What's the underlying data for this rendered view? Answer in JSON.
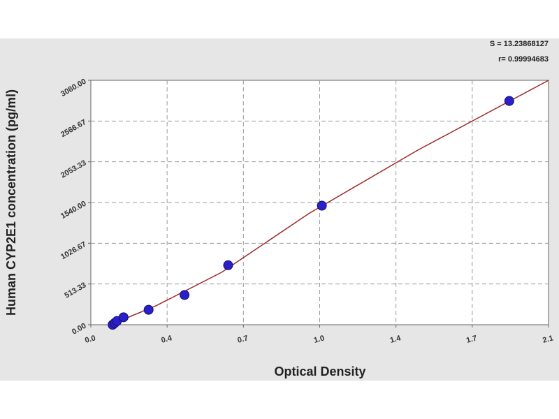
{
  "chart_data": {
    "type": "scatter",
    "x_label": "Optical Density",
    "y_label": "Human CYP2E1 concentration (pg/ml)",
    "annotations": [
      "S = 13.23868127",
      "r= 0.99994683"
    ],
    "xlim": [
      0,
      2.1
    ],
    "xticks": [
      {
        "value": 0,
        "label": "0.0"
      },
      {
        "value": 0.35,
        "label": "0.4"
      },
      {
        "value": 0.7,
        "label": "0.7"
      },
      {
        "value": 1.05,
        "label": "1.0"
      },
      {
        "value": 1.4,
        "label": "1.4"
      },
      {
        "value": 1.75,
        "label": "1.7"
      },
      {
        "value": 2.1,
        "label": "2.1"
      }
    ],
    "ylim": [
      0,
      3080
    ],
    "yticks": [
      {
        "value": 0,
        "label": "0.00"
      },
      {
        "value": 513.33,
        "label": "513.33"
      },
      {
        "value": 1026.67,
        "label": "1026.67"
      },
      {
        "value": 1540,
        "label": "1540.00"
      },
      {
        "value": 2053.33,
        "label": "2053.33"
      },
      {
        "value": 2566.67,
        "label": "2566.67"
      },
      {
        "value": 3080,
        "label": "3080.00"
      }
    ],
    "grid": true,
    "series": [
      {
        "mode": "line",
        "color": "#a02828",
        "x": [
          0.09,
          0.3,
          0.6,
          1.0,
          1.5,
          2.1
        ],
        "values": [
          0,
          240,
          660,
          1400,
          2200,
          3080
        ]
      },
      {
        "mode": "markers",
        "color": "#2a1fc8",
        "x": [
          0.1,
          0.11,
          0.12,
          0.15,
          0.265,
          0.43,
          0.63,
          1.06,
          1.92
        ],
        "values": [
          0,
          23,
          47,
          94,
          188,
          375,
          750,
          1500,
          2820
        ]
      }
    ]
  }
}
